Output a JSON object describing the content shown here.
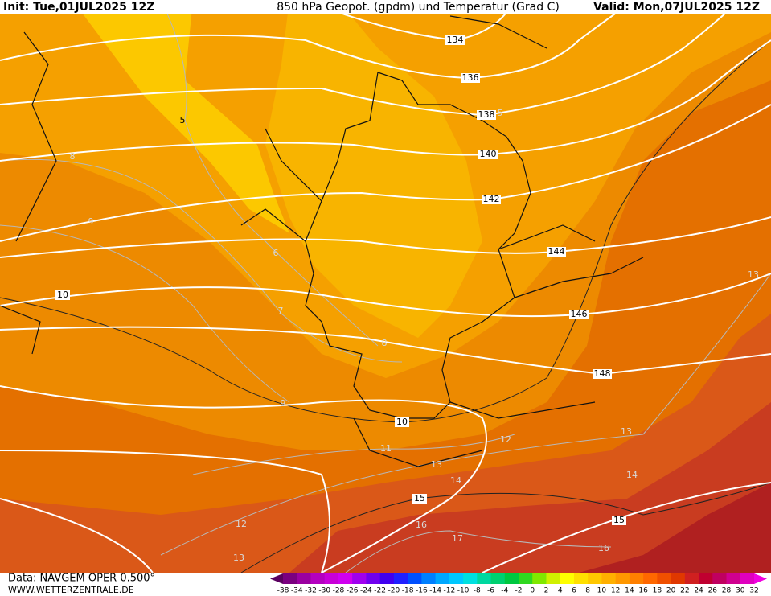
{
  "header": {
    "init": "Init: Tue,01JUL2025 12Z",
    "title": "850 hPa Geopot. (gpdm) und Temperatur (Grad C)",
    "valid": "Valid: Mon,07JUL2025 12Z"
  },
  "geopotential_labels": [
    134,
    136,
    138,
    140,
    142,
    144,
    146,
    148
  ],
  "isotherm_labels": [
    5,
    5,
    8,
    9,
    6,
    7,
    8,
    9,
    10,
    10,
    11,
    12,
    13,
    13,
    13,
    14,
    14,
    15,
    15,
    16,
    17,
    16,
    12,
    13
  ],
  "footer": {
    "data": "Data: NAVGEM OPER 0.500°",
    "site": "WWW.WETTERZENTRALE.DE"
  },
  "legend": {
    "ticks": [
      -38,
      -34,
      -32,
      -30,
      -28,
      -26,
      -24,
      -22,
      -20,
      -18,
      -16,
      -14,
      -12,
      -10,
      -8,
      -6,
      -4,
      -2,
      0,
      2,
      4,
      6,
      8,
      10,
      12,
      14,
      16,
      18,
      20,
      22,
      24,
      26,
      28,
      30,
      32
    ],
    "colors": [
      "#5a0060",
      "#7a0080",
      "#9a00a0",
      "#b400c0",
      "#c800d8",
      "#d000f0",
      "#a000f0",
      "#7000f0",
      "#4000f0",
      "#2020ff",
      "#0050ff",
      "#0080ff",
      "#00a8ff",
      "#00c8ff",
      "#00e0e0",
      "#00d8a0",
      "#00d070",
      "#00c840",
      "#30d820",
      "#80e800",
      "#d0f000",
      "#ffff00",
      "#ffe000",
      "#ffc800",
      "#ffb000",
      "#ff9800",
      "#ff8000",
      "#ff6800",
      "#f05000",
      "#e03800",
      "#d02020",
      "#c00030",
      "#c00060",
      "#d00090",
      "#e000c0",
      "#f000e0"
    ]
  }
}
